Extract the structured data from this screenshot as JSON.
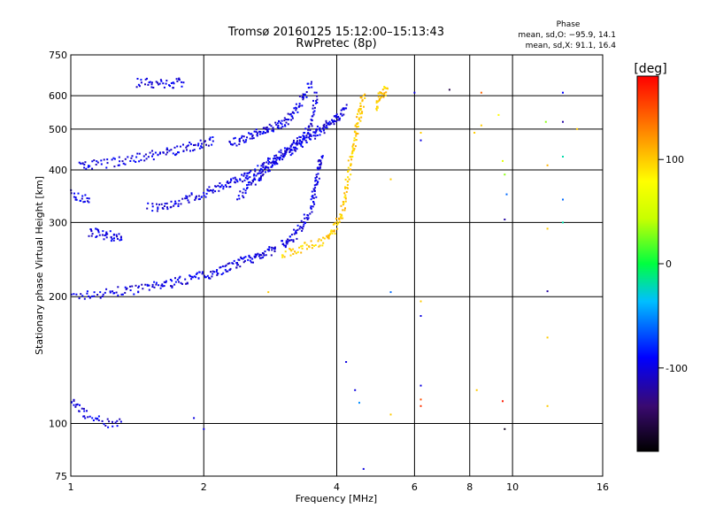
{
  "chart_data": {
    "type": "scatter",
    "title": "Tromsø 20160125 15:12:00–15:13:43",
    "subtitle": "RwPretec (8p)",
    "xlabel": "Frequency [MHz]",
    "ylabel": "Stationary phase Virtual Height [km]",
    "x_scale": "log",
    "y_scale": "log",
    "xlim": [
      1,
      16
    ],
    "ylim": [
      75,
      750
    ],
    "x_ticks": [
      1,
      2,
      4,
      6,
      8,
      10,
      16
    ],
    "y_ticks": [
      75,
      100,
      200,
      300,
      400,
      500,
      600,
      750
    ],
    "grid": true,
    "stats": {
      "title": "Phase",
      "line_o": "mean, sd,O: −95.9, 14.1",
      "line_x": "mean, sd,X:  91.1, 16.4"
    },
    "colorbar": {
      "label": "[deg]",
      "range": [
        -180,
        180
      ],
      "ticks": [
        -100,
        0,
        100
      ]
    },
    "traces": [
      {
        "phase": -100,
        "points": [
          [
            1.0,
            200
          ],
          [
            1.1,
            202
          ],
          [
            1.2,
            204
          ],
          [
            1.3,
            206
          ],
          [
            1.4,
            208
          ],
          [
            1.5,
            210
          ],
          [
            1.6,
            213
          ],
          [
            1.7,
            216
          ],
          [
            1.8,
            219
          ],
          [
            1.9,
            222
          ],
          [
            2.0,
            225
          ],
          [
            2.1,
            228
          ],
          [
            2.2,
            232
          ],
          [
            2.3,
            236
          ],
          [
            2.4,
            240
          ],
          [
            2.5,
            244
          ],
          [
            2.6,
            248
          ],
          [
            2.7,
            252
          ],
          [
            2.8,
            256
          ],
          [
            2.9,
            260
          ]
        ]
      },
      {
        "phase": -100,
        "points": [
          [
            3.0,
            265
          ],
          [
            3.1,
            270
          ],
          [
            3.2,
            278
          ],
          [
            3.3,
            290
          ],
          [
            3.4,
            305
          ],
          [
            3.5,
            325
          ],
          [
            3.55,
            345
          ],
          [
            3.6,
            370
          ],
          [
            3.62,
            390
          ],
          [
            3.65,
            410
          ],
          [
            3.7,
            430
          ]
        ]
      },
      {
        "phase": 100,
        "points": [
          [
            3.0,
            252
          ],
          [
            3.2,
            258
          ],
          [
            3.4,
            263
          ],
          [
            3.6,
            268
          ],
          [
            3.8,
            275
          ],
          [
            3.9,
            285
          ],
          [
            4.0,
            295
          ],
          [
            4.1,
            310
          ],
          [
            4.15,
            330
          ],
          [
            4.2,
            360
          ],
          [
            4.25,
            390
          ],
          [
            4.3,
            420
          ],
          [
            4.35,
            450
          ],
          [
            4.4,
            480
          ],
          [
            4.45,
            510
          ],
          [
            4.5,
            540
          ],
          [
            4.55,
            570
          ],
          [
            4.6,
            600
          ]
        ]
      },
      {
        "phase": -100,
        "points": [
          [
            1.5,
            325
          ],
          [
            1.6,
            328
          ],
          [
            1.7,
            332
          ],
          [
            1.8,
            338
          ],
          [
            1.9,
            345
          ],
          [
            2.0,
            352
          ],
          [
            2.1,
            358
          ],
          [
            2.2,
            365
          ],
          [
            2.3,
            372
          ],
          [
            2.4,
            380
          ],
          [
            2.5,
            388
          ],
          [
            2.6,
            396
          ],
          [
            2.7,
            405
          ],
          [
            2.8,
            415
          ],
          [
            2.9,
            425
          ],
          [
            3.0,
            435
          ],
          [
            3.1,
            445
          ],
          [
            3.2,
            455
          ],
          [
            3.3,
            470
          ],
          [
            3.4,
            490
          ],
          [
            3.5,
            520
          ],
          [
            3.55,
            560
          ],
          [
            3.6,
            610
          ]
        ]
      },
      {
        "phase": -100,
        "points": [
          [
            2.4,
            345
          ],
          [
            2.5,
            360
          ],
          [
            2.6,
            375
          ],
          [
            2.7,
            390
          ],
          [
            2.8,
            405
          ],
          [
            2.9,
            418
          ],
          [
            3.0,
            430
          ],
          [
            3.1,
            440
          ],
          [
            3.2,
            450
          ],
          [
            3.3,
            460
          ],
          [
            3.4,
            470
          ],
          [
            3.5,
            480
          ],
          [
            3.6,
            490
          ],
          [
            3.7,
            500
          ],
          [
            3.8,
            510
          ],
          [
            3.9,
            520
          ],
          [
            4.0,
            530
          ],
          [
            4.1,
            545
          ],
          [
            4.2,
            560
          ]
        ]
      },
      {
        "phase": -100,
        "points": [
          [
            1.05,
            410
          ],
          [
            1.1,
            412
          ],
          [
            1.2,
            415
          ],
          [
            1.3,
            420
          ],
          [
            1.4,
            426
          ],
          [
            1.5,
            432
          ],
          [
            1.6,
            438
          ],
          [
            1.7,
            444
          ],
          [
            1.8,
            450
          ],
          [
            1.9,
            456
          ],
          [
            2.0,
            462
          ],
          [
            2.1,
            468
          ]
        ]
      },
      {
        "phase": -100,
        "points": [
          [
            2.3,
            460
          ],
          [
            2.4,
            470
          ],
          [
            2.5,
            478
          ],
          [
            2.6,
            486
          ],
          [
            2.7,
            494
          ],
          [
            2.8,
            500
          ],
          [
            2.9,
            508
          ],
          [
            3.0,
            516
          ],
          [
            3.1,
            528
          ],
          [
            3.2,
            545
          ],
          [
            3.3,
            575
          ],
          [
            3.4,
            610
          ],
          [
            3.5,
            640
          ]
        ]
      },
      {
        "phase": -100,
        "points": [
          [
            1.4,
            645
          ],
          [
            1.5,
            642
          ],
          [
            1.6,
            640
          ],
          [
            1.7,
            642
          ],
          [
            1.8,
            645
          ]
        ]
      },
      {
        "phase": -100,
        "points": [
          [
            1.1,
            285
          ],
          [
            1.15,
            282
          ],
          [
            1.2,
            280
          ],
          [
            1.25,
            278
          ],
          [
            1.3,
            276
          ]
        ]
      },
      {
        "phase": -100,
        "points": [
          [
            1.0,
            350
          ],
          [
            1.05,
            345
          ],
          [
            1.1,
            342
          ]
        ]
      },
      {
        "phase": -100,
        "points": [
          [
            1.0,
            112
          ],
          [
            1.05,
            108
          ],
          [
            1.1,
            104
          ],
          [
            1.2,
            100
          ],
          [
            1.3,
            101
          ]
        ]
      },
      {
        "phase": 100,
        "points": [
          [
            4.9,
            560
          ],
          [
            5.0,
            590
          ],
          [
            5.1,
            610
          ],
          [
            5.2,
            625
          ]
        ]
      }
    ],
    "scatter_points": [
      {
        "x": 6.2,
        "y": 490,
        "phase": 100
      },
      {
        "x": 6.2,
        "y": 470,
        "phase": -100
      },
      {
        "x": 6.2,
        "y": 195,
        "phase": 100
      },
      {
        "x": 6.2,
        "y": 180,
        "phase": -100
      },
      {
        "x": 6.2,
        "y": 123,
        "phase": -100
      },
      {
        "x": 6.2,
        "y": 114,
        "phase": 150
      },
      {
        "x": 6.2,
        "y": 110,
        "phase": 160
      },
      {
        "x": 7.2,
        "y": 620,
        "phase": -150
      },
      {
        "x": 8.5,
        "y": 610,
        "phase": 140
      },
      {
        "x": 8.5,
        "y": 510,
        "phase": 100
      },
      {
        "x": 8.2,
        "y": 490,
        "phase": 100
      },
      {
        "x": 9.3,
        "y": 540,
        "phase": 80
      },
      {
        "x": 9.5,
        "y": 420,
        "phase": 60
      },
      {
        "x": 9.6,
        "y": 390,
        "phase": 30
      },
      {
        "x": 9.7,
        "y": 350,
        "phase": -60
      },
      {
        "x": 9.6,
        "y": 305,
        "phase": -120
      },
      {
        "x": 9.5,
        "y": 113,
        "phase": 170
      },
      {
        "x": 9.6,
        "y": 97,
        "phase": -170
      },
      {
        "x": 8.3,
        "y": 120,
        "phase": 100
      },
      {
        "x": 11.9,
        "y": 520,
        "phase": 30
      },
      {
        "x": 12.0,
        "y": 410,
        "phase": 110
      },
      {
        "x": 12.0,
        "y": 290,
        "phase": 100
      },
      {
        "x": 12.0,
        "y": 206,
        "phase": -120
      },
      {
        "x": 12.0,
        "y": 160,
        "phase": 100
      },
      {
        "x": 12.0,
        "y": 110,
        "phase": 100
      },
      {
        "x": 13.0,
        "y": 610,
        "phase": -90
      },
      {
        "x": 13.0,
        "y": 520,
        "phase": -120
      },
      {
        "x": 13.0,
        "y": 430,
        "phase": -20
      },
      {
        "x": 13.0,
        "y": 340,
        "phase": -60
      },
      {
        "x": 13.0,
        "y": 300,
        "phase": -20
      },
      {
        "x": 14.0,
        "y": 500,
        "phase": 100
      },
      {
        "x": 5.3,
        "y": 205,
        "phase": -60
      },
      {
        "x": 5.3,
        "y": 105,
        "phase": 100
      },
      {
        "x": 5.3,
        "y": 380,
        "phase": 100
      },
      {
        "x": 4.4,
        "y": 120,
        "phase": -100
      },
      {
        "x": 4.5,
        "y": 112,
        "phase": -50
      },
      {
        "x": 4.2,
        "y": 140,
        "phase": -100
      },
      {
        "x": 4.6,
        "y": 78,
        "phase": -100
      },
      {
        "x": 1.9,
        "y": 103,
        "phase": -100
      },
      {
        "x": 2.0,
        "y": 97,
        "phase": -100
      },
      {
        "x": 6.0,
        "y": 610,
        "phase": -100
      },
      {
        "x": 2.8,
        "y": 205,
        "phase": 100
      }
    ]
  }
}
